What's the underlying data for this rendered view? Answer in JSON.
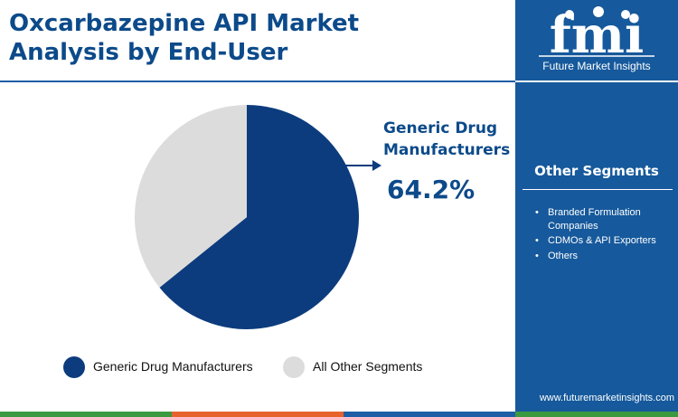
{
  "title": {
    "line1": "Oxcarbazepine API Market",
    "line2": "Analysis by End-User"
  },
  "brand": {
    "logo_text": "fmi",
    "tagline": "Future Market Insights",
    "url": "www.futuremarketinsights.com"
  },
  "callout": {
    "name_line1": "Generic Drug",
    "name_line2": "Manufacturers",
    "value": "64.2%"
  },
  "other_segments": {
    "title": "Other Segments",
    "items": [
      {
        "label": "Branded Formulation Companies"
      },
      {
        "label": "CDMOs & API Exporters"
      },
      {
        "label": "Others"
      }
    ]
  },
  "legend": [
    {
      "label": "Generic Drug Manufacturers",
      "color": "#0c3c7d"
    },
    {
      "label": "All Other Segments",
      "color": "#dcdcdc"
    }
  ],
  "colors": {
    "primary": "#0c3c7d",
    "secondary": "#dcdcdc",
    "sidebar": "#16599c",
    "title": "#0c4a8a",
    "bottom_bar": [
      "#3b9a3f",
      "#e8632c",
      "#1d5ea6",
      "#3b9a3f"
    ]
  },
  "chart_data": {
    "type": "pie",
    "title": "Oxcarbazepine API Market Analysis by End-User",
    "slices": [
      {
        "label": "Generic Drug Manufacturers",
        "value": 64.2,
        "color": "#0c3c7d"
      },
      {
        "label": "All Other Segments",
        "value": 35.8,
        "color": "#dcdcdc"
      }
    ],
    "legend_position": "bottom"
  }
}
